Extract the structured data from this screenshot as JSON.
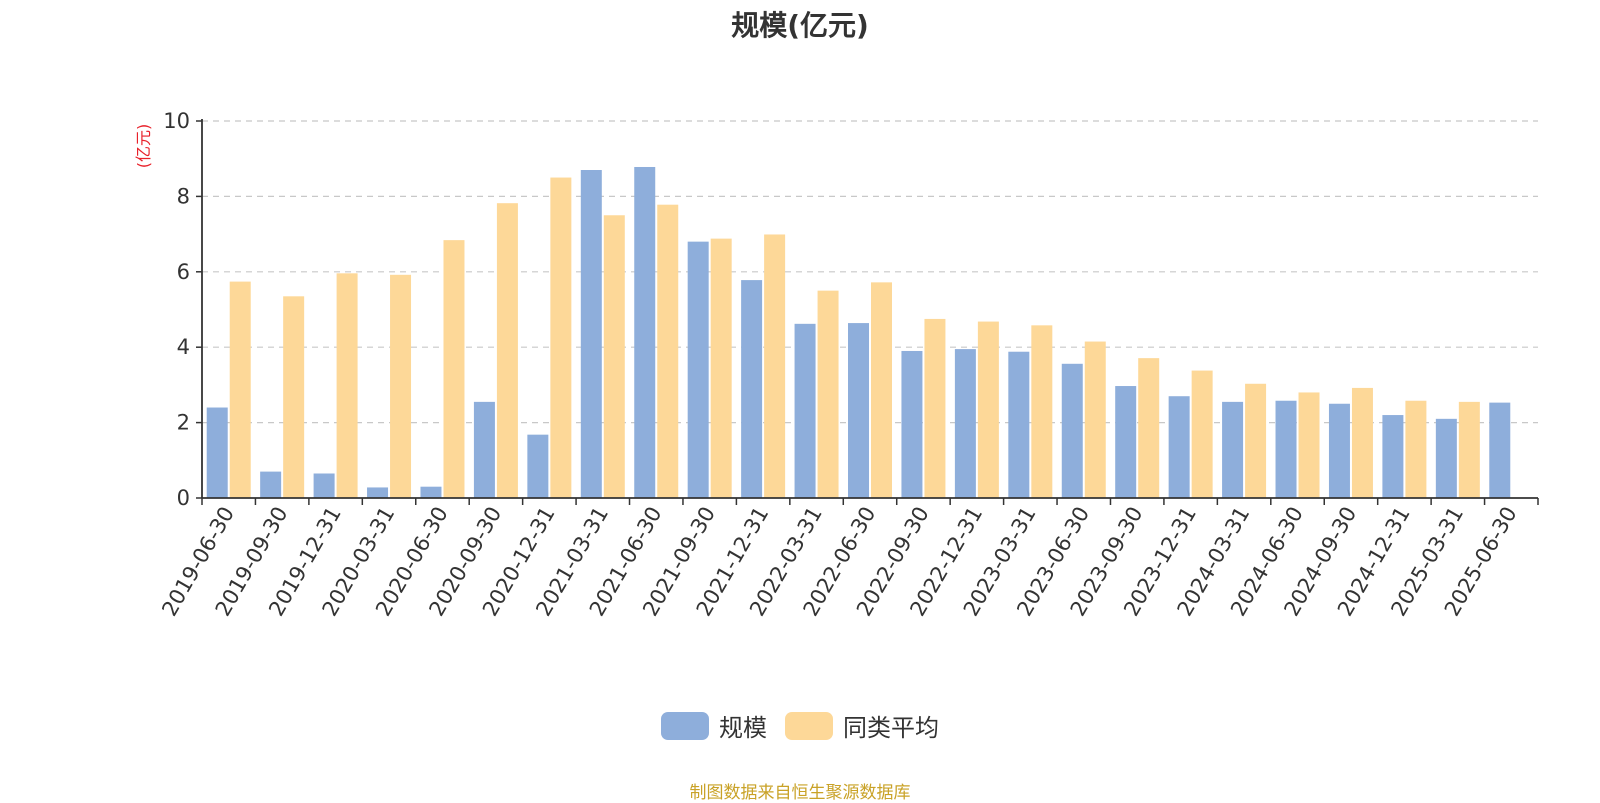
{
  "chart_data": {
    "type": "bar",
    "title": "规模(亿元)",
    "ylabel": "(亿元)",
    "xlabel": "",
    "ylim": [
      0,
      10
    ],
    "yticks": [
      0,
      2,
      4,
      6,
      8,
      10
    ],
    "grid": true,
    "legend_position": "bottom",
    "categories": [
      "2019-06-30",
      "2019-09-30",
      "2019-12-31",
      "2020-03-31",
      "2020-06-30",
      "2020-09-30",
      "2020-12-31",
      "2021-03-31",
      "2021-06-30",
      "2021-09-30",
      "2021-12-31",
      "2022-03-31",
      "2022-06-30",
      "2022-09-30",
      "2022-12-31",
      "2023-03-31",
      "2023-06-30",
      "2023-09-30",
      "2023-12-31",
      "2024-03-31",
      "2024-06-30",
      "2024-09-30",
      "2024-12-31",
      "2025-03-31",
      "2025-06-30"
    ],
    "series": [
      {
        "name": "规模",
        "color": "#8eaedb",
        "values": [
          2.4,
          0.7,
          0.65,
          0.28,
          0.3,
          2.55,
          1.68,
          8.7,
          8.78,
          6.8,
          5.78,
          4.62,
          4.64,
          3.9,
          3.95,
          3.88,
          3.56,
          2.97,
          2.7,
          2.55,
          2.58,
          2.5,
          2.2,
          2.1,
          2.53
        ]
      },
      {
        "name": "同类平均",
        "color": "#fdd898",
        "values": [
          5.74,
          5.35,
          5.96,
          5.92,
          6.84,
          7.82,
          8.5,
          7.5,
          7.78,
          6.88,
          6.99,
          5.5,
          5.72,
          4.75,
          4.68,
          4.58,
          4.15,
          3.71,
          3.38,
          3.03,
          2.8,
          2.92,
          2.58,
          2.55,
          null
        ]
      }
    ]
  },
  "footer": {
    "source_text": "制图数据来自恒生聚源数据库"
  }
}
